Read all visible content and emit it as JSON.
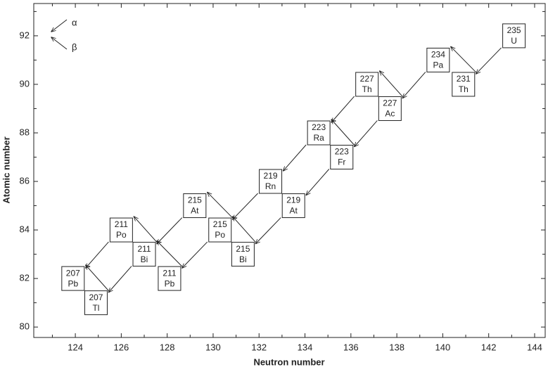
{
  "chart_data": {
    "type": "scatter",
    "xlabel": "Neutron number",
    "ylabel": "Atomic number",
    "xlim": [
      122.19,
      144.46
    ],
    "ylim": [
      79.57,
      93.33
    ],
    "xticks": [
      124,
      126,
      128,
      130,
      132,
      134,
      136,
      138,
      140,
      142,
      144
    ],
    "xminor": [
      123,
      125,
      127,
      129,
      131,
      133,
      135,
      137,
      139,
      141,
      143
    ],
    "yticks": [
      80,
      82,
      84,
      86,
      88,
      90,
      92
    ],
    "yminor": [
      81,
      83,
      85,
      87,
      89,
      91,
      93
    ],
    "legend": [
      "α",
      "β"
    ],
    "points": [
      {
        "mass": 235,
        "symbol": "U",
        "x": 143.1,
        "y": 92
      },
      {
        "mass": 231,
        "symbol": "Th",
        "x": 140.9,
        "y": 90
      },
      {
        "mass": 234,
        "symbol": "Pa",
        "x": 139.8,
        "y": 91
      },
      {
        "mass": 227,
        "symbol": "Ac",
        "x": 137.7,
        "y": 89
      },
      {
        "mass": 227,
        "symbol": "Th",
        "x": 136.7,
        "y": 90
      },
      {
        "mass": 223,
        "symbol": "Fr",
        "x": 135.6,
        "y": 87
      },
      {
        "mass": 223,
        "symbol": "Ra",
        "x": 134.6,
        "y": 88
      },
      {
        "mass": 219,
        "symbol": "At",
        "x": 133.5,
        "y": 85
      },
      {
        "mass": 219,
        "symbol": "Rn",
        "x": 132.5,
        "y": 86
      },
      {
        "mass": 215,
        "symbol": "Bi",
        "x": 131.3,
        "y": 83
      },
      {
        "mass": 215,
        "symbol": "Po",
        "x": 130.3,
        "y": 84
      },
      {
        "mass": 215,
        "symbol": "At",
        "x": 129.2,
        "y": 85
      },
      {
        "mass": 211,
        "symbol": "Pb",
        "x": 128.1,
        "y": 82
      },
      {
        "mass": 211,
        "symbol": "Bi",
        "x": 127.0,
        "y": 83
      },
      {
        "mass": 211,
        "symbol": "Po",
        "x": 126.0,
        "y": 84
      },
      {
        "mass": 207,
        "symbol": "Tl",
        "x": 124.9,
        "y": 81
      },
      {
        "mass": 207,
        "symbol": "Pb",
        "x": 123.9,
        "y": 82
      }
    ]
  }
}
